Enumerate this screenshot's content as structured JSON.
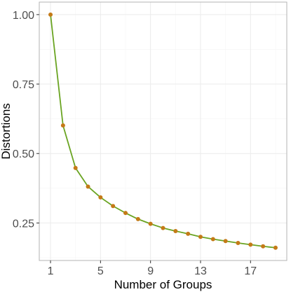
{
  "chart_data": {
    "type": "line",
    "title": "",
    "xlabel": "Number of Groups",
    "ylabel": "Distortions",
    "xlim": [
      0.1,
      19.9
    ],
    "ylim": [
      0.115,
      1.045
    ],
    "xticks": [
      1,
      5,
      9,
      13,
      17
    ],
    "yticks": [
      0.25,
      0.5,
      0.75,
      1.0
    ],
    "ytick_labels": [
      "0.25",
      "0.50",
      "0.75",
      "1.00"
    ],
    "grid": true,
    "series": [
      {
        "x": [
          1,
          2,
          3,
          4,
          5,
          6,
          7,
          8,
          9,
          10,
          11,
          12,
          13,
          14,
          15,
          16,
          17,
          18,
          19
        ],
        "values": [
          1.0,
          0.601,
          0.448,
          0.381,
          0.342,
          0.311,
          0.286,
          0.264,
          0.247,
          0.232,
          0.221,
          0.211,
          0.2,
          0.192,
          0.185,
          0.178,
          0.172,
          0.166,
          0.161
        ],
        "line_color": "#6aa422",
        "point_color": "#c47a17"
      }
    ]
  }
}
